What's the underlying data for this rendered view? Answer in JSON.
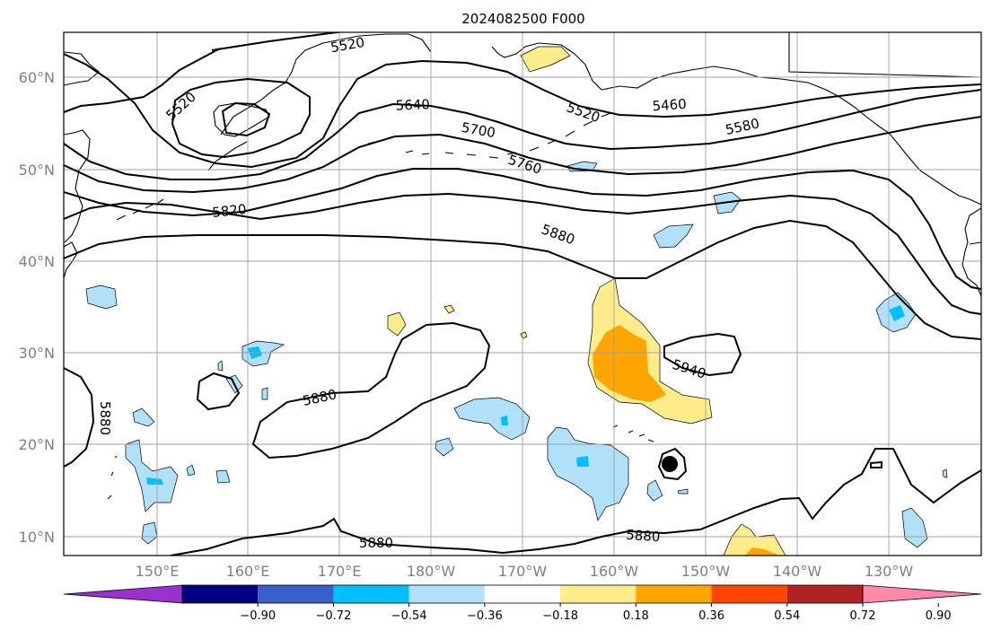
{
  "title": "2024082500 F000",
  "lat_labels": [
    "60°N",
    "50°N",
    "40°N",
    "30°N",
    "20°N",
    "10°N"
  ],
  "lon_labels": [
    "150°E",
    "160°E",
    "170°E",
    "180°W",
    "170°W",
    "160°W",
    "150°W",
    "140°W",
    "130°W"
  ],
  "contour_labels": [
    "5520",
    "5520",
    "5640",
    "5700",
    "5760",
    "5820",
    "5520",
    "5460",
    "5580",
    "5880",
    "5880",
    "5940",
    "5880",
    "5880",
    "5880"
  ],
  "colorbar": {
    "ticks": [
      "−0.90",
      "−0.72",
      "−0.54",
      "−0.36",
      "−0.18",
      "0.18",
      "0.36",
      "0.54",
      "0.72",
      "0.90"
    ],
    "colors": [
      "#9932cc",
      "#000080",
      "#3a5fcd",
      "#00bfff",
      "#b0e0fa",
      "#ffffff",
      "#ffec8b",
      "#ffa500",
      "#ff4500",
      "#b22222",
      "#ff88aa"
    ]
  },
  "fill_colors": {
    "light_blue": "#b0e0fa",
    "blue": "#00bfff",
    "yellow": "#ffec8b",
    "orange": "#ffa500"
  },
  "storm_marker": "filled-circle"
}
